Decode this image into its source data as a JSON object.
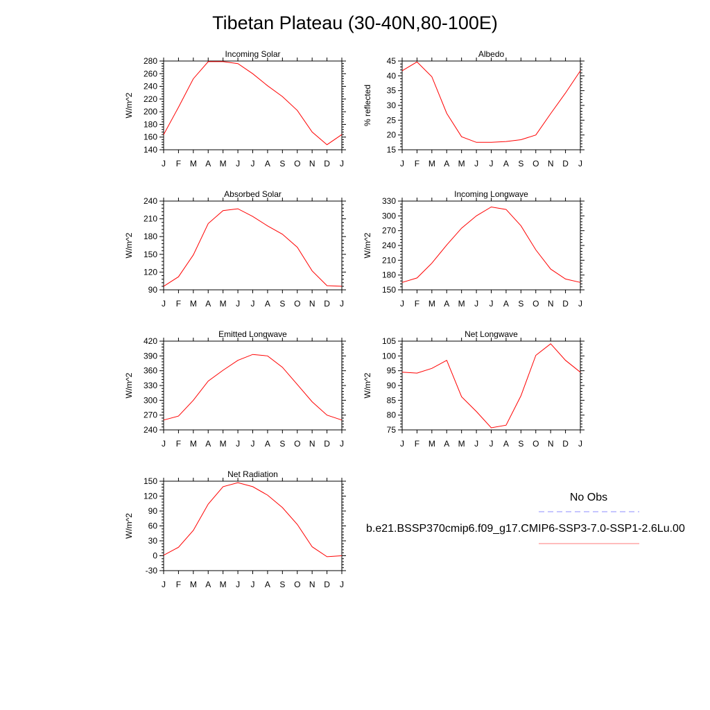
{
  "title": "Tibetan Plateau (30-40N,80-100E)",
  "legend": {
    "entries": [
      {
        "label": "No Obs",
        "color": "#0000ff",
        "dash": "dashed"
      },
      {
        "label": "b.e21.BSSP370cmip6.f09_g17.CMIP6-SSP3-7.0-SSP1-2.6Lu.00",
        "color": "#ff0000",
        "dash": "solid"
      }
    ]
  },
  "chart_data": [
    {
      "type": "line",
      "title": "Incoming Solar",
      "ylabel": "W/m^2",
      "categories": [
        "J",
        "F",
        "M",
        "A",
        "M",
        "J",
        "J",
        "A",
        "S",
        "O",
        "N",
        "D",
        "J"
      ],
      "ylim": [
        140,
        280
      ],
      "yticks": [
        140,
        160,
        180,
        200,
        220,
        240,
        260,
        280
      ],
      "series": [
        {
          "color": "#ff0000",
          "values": [
            164,
            207,
            252,
            279,
            279,
            276,
            260,
            241,
            224,
            202,
            168,
            148,
            164
          ]
        }
      ]
    },
    {
      "type": "line",
      "title": "Albedo",
      "ylabel": "% reflected",
      "categories": [
        "J",
        "F",
        "M",
        "A",
        "M",
        "J",
        "J",
        "A",
        "S",
        "O",
        "N",
        "D",
        "J"
      ],
      "ylim": [
        15,
        45
      ],
      "yticks": [
        15,
        20,
        25,
        30,
        35,
        40,
        45
      ],
      "series": [
        {
          "color": "#ff0000",
          "values": [
            41.7,
            44.7,
            39.7,
            27.3,
            19.4,
            17.5,
            17.5,
            17.8,
            18.4,
            20.0,
            27.2,
            34.2,
            41.7
          ]
        }
      ]
    },
    {
      "type": "line",
      "title": "Absorbed Solar",
      "ylabel": "W/m^2",
      "categories": [
        "J",
        "F",
        "M",
        "A",
        "M",
        "J",
        "J",
        "A",
        "S",
        "O",
        "N",
        "D",
        "J"
      ],
      "ylim": [
        90,
        240
      ],
      "yticks": [
        90,
        120,
        150,
        180,
        210,
        240
      ],
      "series": [
        {
          "color": "#ff0000",
          "values": [
            96,
            112,
            149,
            202,
            224,
            227,
            214,
            198,
            184,
            162,
            122,
            97,
            96
          ]
        }
      ]
    },
    {
      "type": "line",
      "title": "Incoming Longwave",
      "ylabel": "W/m^2",
      "categories": [
        "J",
        "F",
        "M",
        "A",
        "M",
        "J",
        "J",
        "A",
        "S",
        "O",
        "N",
        "D",
        "J"
      ],
      "ylim": [
        150,
        330
      ],
      "yticks": [
        150,
        180,
        210,
        240,
        270,
        300,
        330
      ],
      "series": [
        {
          "color": "#ff0000",
          "values": [
            165,
            174,
            204,
            241,
            275,
            300,
            318,
            313,
            280,
            231,
            192,
            172,
            165
          ]
        }
      ]
    },
    {
      "type": "line",
      "title": "Emitted Longwave",
      "ylabel": "W/m^2",
      "categories": [
        "J",
        "F",
        "M",
        "A",
        "M",
        "J",
        "J",
        "A",
        "S",
        "O",
        "N",
        "D",
        "J"
      ],
      "ylim": [
        240,
        420
      ],
      "yticks": [
        240,
        270,
        300,
        330,
        360,
        390,
        420
      ],
      "series": [
        {
          "color": "#ff0000",
          "values": [
            260,
            268,
            300,
            339,
            361,
            381,
            393,
            390,
            367,
            332,
            297,
            270,
            260
          ]
        }
      ]
    },
    {
      "type": "line",
      "title": "Net Longwave",
      "ylabel": "W/m^2",
      "categories": [
        "J",
        "F",
        "M",
        "A",
        "M",
        "J",
        "J",
        "A",
        "S",
        "O",
        "N",
        "D",
        "J"
      ],
      "ylim": [
        75,
        105
      ],
      "yticks": [
        75,
        80,
        85,
        90,
        95,
        100,
        105
      ],
      "series": [
        {
          "color": "#ff0000",
          "values": [
            94.5,
            94.2,
            95.8,
            98.5,
            86.2,
            81.2,
            75.7,
            76.6,
            86.5,
            100.2,
            104.1,
            98.5,
            94.5
          ]
        }
      ]
    },
    {
      "type": "line",
      "title": "Net Radiation",
      "ylabel": "W/m^2",
      "categories": [
        "J",
        "F",
        "M",
        "A",
        "M",
        "J",
        "J",
        "A",
        "S",
        "O",
        "N",
        "D",
        "J"
      ],
      "ylim": [
        -30,
        150
      ],
      "yticks": [
        -30,
        0,
        30,
        60,
        90,
        120,
        150
      ],
      "series": [
        {
          "color": "#ff0000",
          "values": [
            1,
            17,
            51,
            104,
            139,
            147,
            139,
            122,
            97,
            63,
            18,
            -2,
            0
          ]
        }
      ]
    }
  ]
}
